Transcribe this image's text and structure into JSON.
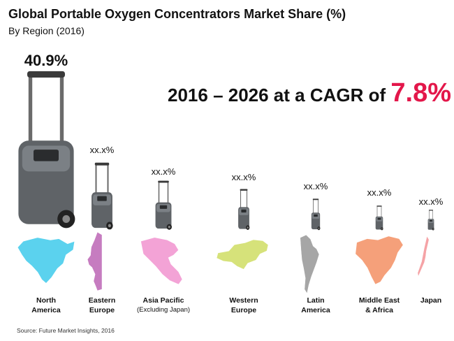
{
  "title": "Global Portable Oxygen Concentrators Market Share (%)",
  "subtitle": "By Region (2016)",
  "cagr": {
    "prefix": "2016 – 2026 at a CAGR of",
    "value": "7.8%"
  },
  "source": "Source: Future Market Insights, 2016",
  "colors": {
    "accent": "#e3174a"
  },
  "chart_data": {
    "type": "bar",
    "title": "Global Portable Oxygen Concentrators Market Share (%)",
    "subtitle": "By Region (2016)",
    "categories": [
      "North America",
      "Eastern Europe",
      "Asia Pacific (Excluding Japan)",
      "Western Europe",
      "Latin America",
      "Middle East & Africa",
      "Japan"
    ],
    "values": [
      40.9,
      null,
      null,
      null,
      null,
      null,
      null
    ],
    "data_labels": [
      "40.9%",
      "xx.x%",
      "xx.x%",
      "xx.x%",
      "xx.x%",
      "xx.x%",
      "xx.x%"
    ],
    "regions": [
      {
        "name": "North",
        "name2": "America",
        "sub": "",
        "label": "40.9%",
        "map_color": "#5bd2ee",
        "icon": "north-america-map"
      },
      {
        "name": "Eastern",
        "name2": "Europe",
        "sub": "",
        "label": "xx.x%",
        "map_color": "#c67cc0",
        "icon": "eastern-europe-map"
      },
      {
        "name": "Asia Pacific",
        "name2": "",
        "sub": "(Excluding Japan)",
        "label": "xx.x%",
        "map_color": "#f3a3d6",
        "icon": "asia-pacific-map"
      },
      {
        "name": "Western",
        "name2": "Europe",
        "sub": "",
        "label": "xx.x%",
        "map_color": "#d6e27a",
        "icon": "western-europe-map"
      },
      {
        "name": "Latin",
        "name2": "America",
        "sub": "",
        "label": "xx.x%",
        "map_color": "#a6a6a6",
        "icon": "latin-america-map"
      },
      {
        "name": "Middle East",
        "name2": "& Africa",
        "sub": "",
        "label": "xx.x%",
        "map_color": "#f5a07a",
        "icon": "middle-east-africa-map"
      },
      {
        "name": "Japan",
        "name2": "",
        "sub": "",
        "label": "xx.x%",
        "map_color": "#f5a3a6",
        "icon": "japan-map"
      }
    ]
  }
}
